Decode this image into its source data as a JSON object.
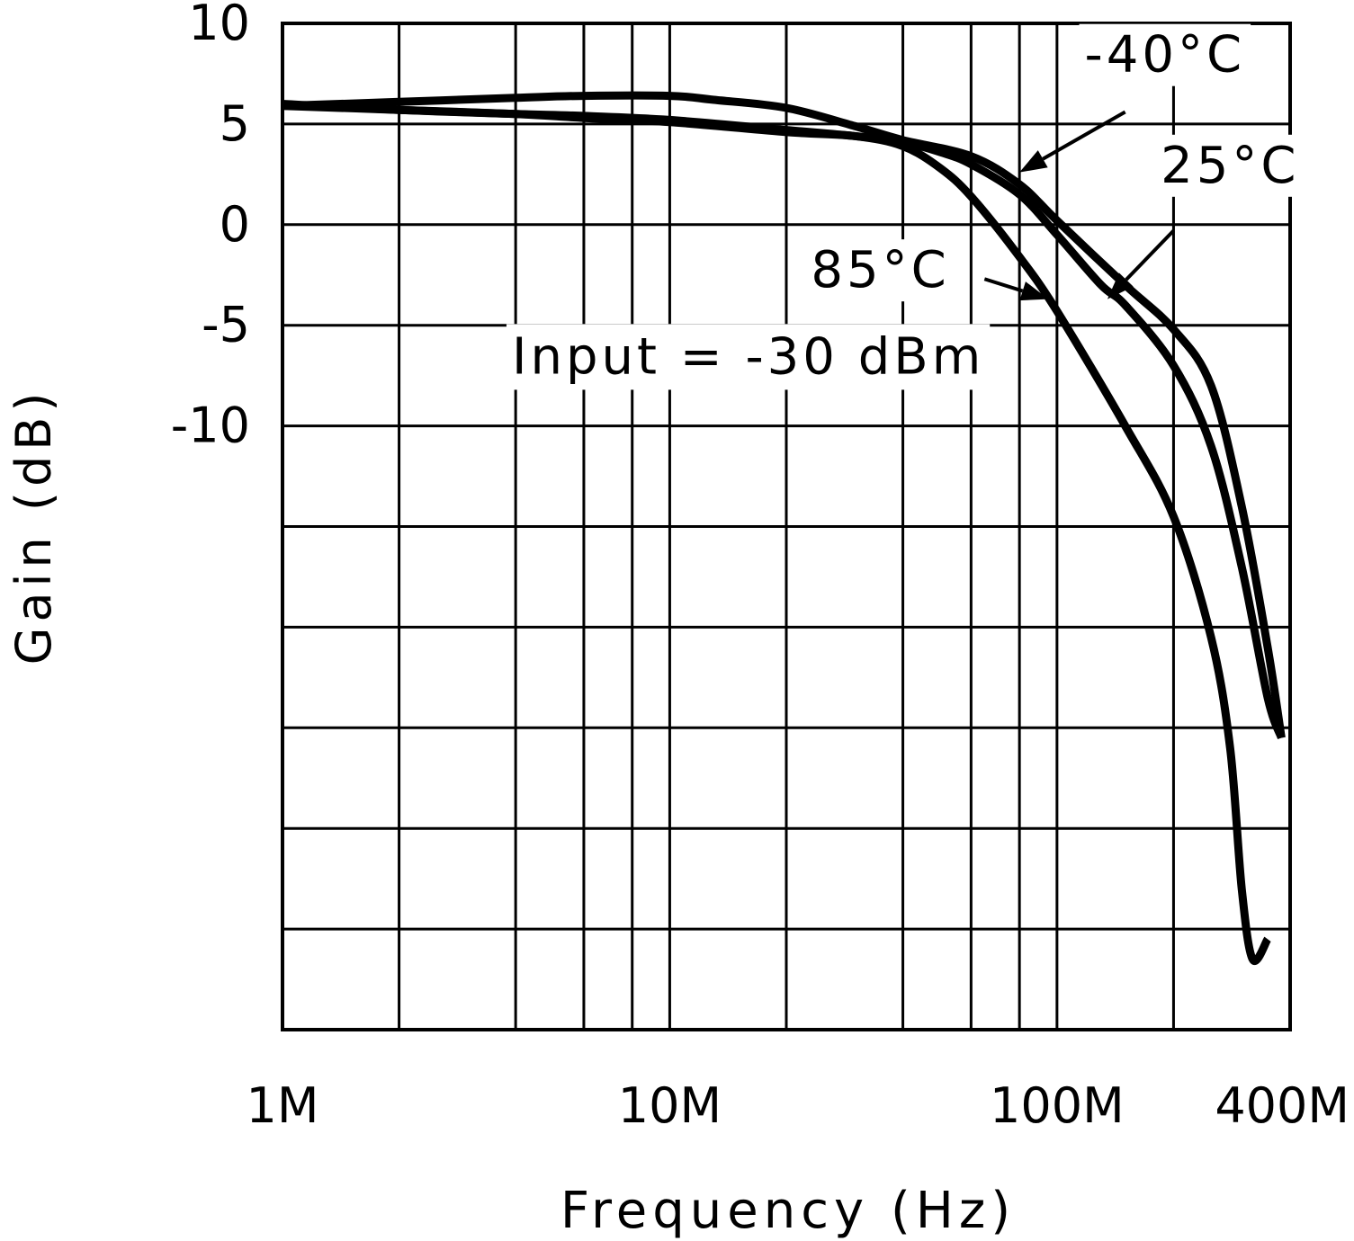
{
  "chart_data": {
    "type": "line",
    "title": "",
    "xlabel": "Frequency (Hz)",
    "ylabel": "Gain (dB)",
    "xscale": "log",
    "xlim": [
      1000000,
      400000000
    ],
    "ylim": [
      -40,
      10
    ],
    "grid": true,
    "x_tick_labels": [
      {
        "value": 1000000,
        "label": "1M"
      },
      {
        "value": 10000000,
        "label": "10M"
      },
      {
        "value": 100000000,
        "label": "100M"
      },
      {
        "value": 400000000,
        "label": "400M"
      }
    ],
    "x_gridlines": [
      2000000,
      4000000,
      6000000,
      8000000,
      10000000,
      20000000,
      40000000,
      60000000,
      80000000,
      100000000,
      200000000
    ],
    "y_gridlines": [
      5,
      0,
      -5,
      -10,
      -15,
      -20,
      -25,
      -30,
      -35
    ],
    "y_tick_labels": [
      {
        "value": 10,
        "label": "10"
      },
      {
        "value": 5,
        "label": "5"
      },
      {
        "value": 0,
        "label": "0"
      },
      {
        "value": -5,
        "label": "-5"
      },
      {
        "value": -10,
        "label": "-10"
      }
    ],
    "annotation": {
      "text": "Input = -30 dBm",
      "x": 6000000,
      "y": -7.4
    },
    "series": [
      {
        "name": "-40°C",
        "label": "-40°C",
        "label_pos": {
          "x": 190000000,
          "y": 7.6
        },
        "arrow_from": {
          "x": 150000000,
          "y": 5.6
        },
        "arrow_to": {
          "x": 80000000,
          "y": 2.6
        },
        "x": [
          1000000,
          2000000,
          4000000,
          6000000,
          10000000,
          13000000,
          20000000,
          30000000,
          40000000,
          60000000,
          80000000,
          100000000,
          150000000,
          200000000,
          250000000,
          300000000,
          350000000,
          380000000
        ],
        "y": [
          5.9,
          6.1,
          6.3,
          6.4,
          6.4,
          6.2,
          5.8,
          4.9,
          4.2,
          3.4,
          2.0,
          0.2,
          -3.0,
          -5.2,
          -8.0,
          -14.0,
          -21.0,
          -25.5
        ]
      },
      {
        "name": "25°C",
        "label": "25°C",
        "label_pos": {
          "x": 280000000,
          "y": 2.1
        },
        "arrow_from": {
          "x": 200000000,
          "y": -0.3
        },
        "arrow_to": {
          "x": 135000000,
          "y": -3.7
        },
        "x": [
          1000000,
          2000000,
          4000000,
          6000000,
          10000000,
          20000000,
          30000000,
          40000000,
          50000000,
          60000000,
          80000000,
          100000000,
          130000000,
          150000000,
          200000000,
          250000000,
          300000000,
          350000000,
          380000000
        ],
        "y": [
          6.0,
          5.7,
          5.5,
          5.4,
          5.2,
          4.7,
          4.4,
          4.1,
          3.6,
          3.0,
          1.5,
          -0.5,
          -3.0,
          -4.0,
          -7.0,
          -11.0,
          -17.0,
          -23.5,
          -25.5
        ]
      },
      {
        "name": "85°C",
        "label": "85°C",
        "label_pos": {
          "x": 35000000,
          "y": -3.1
        },
        "arrow_from": {
          "x": 65000000,
          "y": -2.7
        },
        "arrow_to": {
          "x": 95000000,
          "y": -3.7
        },
        "x": [
          1000000,
          2000000,
          4000000,
          6000000,
          10000000,
          20000000,
          30000000,
          40000000,
          50000000,
          60000000,
          80000000,
          100000000,
          150000000,
          200000000,
          250000000,
          280000000,
          300000000,
          320000000,
          350000000
        ],
        "y": [
          5.9,
          5.7,
          5.5,
          5.3,
          5.1,
          4.6,
          4.4,
          3.9,
          2.8,
          1.4,
          -1.6,
          -4.3,
          -10.0,
          -14.5,
          -20.5,
          -26.0,
          -33.0,
          -36.5,
          -35.5
        ]
      }
    ]
  }
}
